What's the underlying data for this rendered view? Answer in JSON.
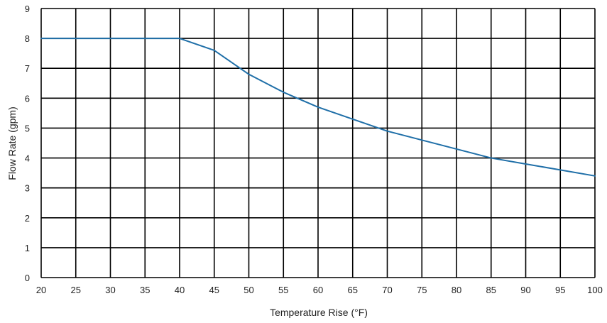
{
  "chart_data": {
    "type": "line",
    "title": "",
    "xlabel": "Temperature Rise (°F)",
    "ylabel": "Flow Rate (gpm)",
    "xlim": [
      20,
      100
    ],
    "ylim": [
      0,
      9
    ],
    "x_ticks": [
      20,
      25,
      30,
      35,
      40,
      45,
      50,
      55,
      60,
      65,
      70,
      75,
      80,
      85,
      90,
      95,
      100
    ],
    "y_ticks": [
      0,
      1,
      2,
      3,
      4,
      5,
      6,
      7,
      8,
      9
    ],
    "grid": true,
    "legend": "none",
    "series": [
      {
        "color": "#1f6fa8",
        "x": [
          20,
          25,
          30,
          35,
          40,
          45,
          50,
          55,
          60,
          65,
          70,
          75,
          80,
          85,
          90,
          95,
          100
        ],
        "y": [
          8,
          8,
          8,
          8,
          8,
          7.6,
          6.8,
          6.2,
          5.7,
          5.3,
          4.9,
          4.6,
          4.3,
          4.0,
          3.8,
          3.6,
          3.4
        ]
      }
    ]
  }
}
